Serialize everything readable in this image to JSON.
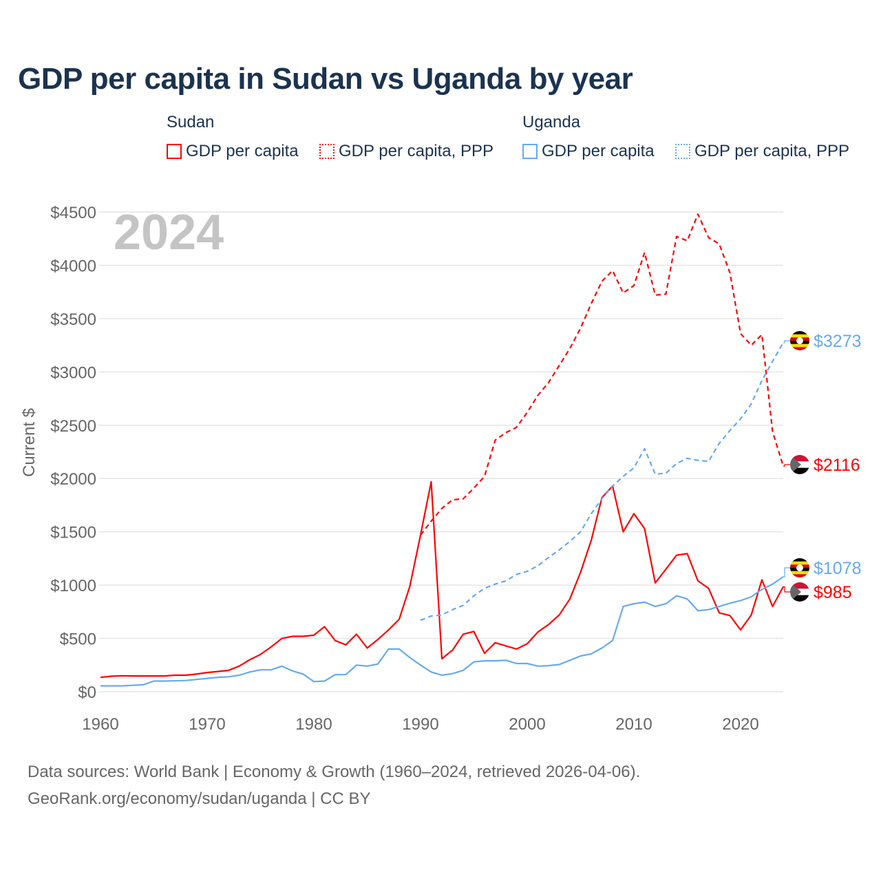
{
  "title": "GDP per capita in Sudan vs Uganda by year",
  "legend": {
    "groups": [
      {
        "name": "Sudan",
        "items": [
          "GDP per capita",
          "GDP per capita, PPP"
        ]
      },
      {
        "name": "Uganda",
        "items": [
          "GDP per capita",
          "GDP per capita, PPP"
        ]
      }
    ]
  },
  "colors": {
    "sudan": "#ff0000",
    "uganda": "#66aaee",
    "grid": "#e6e6e6",
    "year_watermark": "#c4c4c4"
  },
  "footer": {
    "line1": "Data sources: World Bank | Economy & Growth (1960–2024, retrieved 2026-04-06).",
    "line2": "GeoRank.org/economy/sudan/uganda | CC BY"
  },
  "chart_data": {
    "type": "line",
    "title": "GDP per capita in Sudan vs Uganda by year",
    "year_label": "2024",
    "xlabel": "",
    "ylabel": "Current $",
    "xlim": [
      1960,
      2024
    ],
    "ylim": [
      0,
      4500
    ],
    "x_ticks": [
      "1960",
      "1970",
      "1980",
      "1990",
      "2000",
      "2010",
      "2020"
    ],
    "y_ticks": [
      "$0",
      "$500",
      "$1000",
      "$1500",
      "$2000",
      "$2500",
      "$3000",
      "$3500",
      "$4000",
      "$4500"
    ],
    "grid": true,
    "series": [
      {
        "name": "Sudan GDP per capita",
        "country": "Sudan",
        "style": "solid",
        "start": 1960,
        "values": [
          135,
          145,
          150,
          148,
          148,
          148,
          148,
          155,
          155,
          165,
          180,
          190,
          200,
          240,
          300,
          350,
          420,
          500,
          520,
          520,
          530,
          610,
          480,
          440,
          540,
          410,
          490,
          580,
          680,
          990,
          1470,
          1970,
          310,
          390,
          540,
          565,
          360,
          460,
          430,
          400,
          450,
          560,
          630,
          720,
          870,
          1120,
          1420,
          1820,
          1930,
          1500,
          1670,
          1530,
          1020,
          1150,
          1280,
          1295,
          1040,
          970,
          740,
          715,
          580,
          720,
          1050,
          800,
          985
        ],
        "end_label": "$985"
      },
      {
        "name": "Sudan GDP per capita, PPP",
        "country": "Sudan",
        "style": "dashed",
        "start": 1990,
        "values": [
          1470,
          1600,
          1720,
          1800,
          1810,
          1910,
          2020,
          2360,
          2430,
          2480,
          2620,
          2780,
          2900,
          3060,
          3220,
          3410,
          3640,
          3850,
          3950,
          3740,
          3810,
          4120,
          3720,
          3730,
          4270,
          4230,
          4480,
          4260,
          4200,
          3930,
          3360,
          3250,
          3350,
          2440,
          2116
        ],
        "end_label": "$2116"
      },
      {
        "name": "Uganda GDP per capita",
        "country": "Uganda",
        "style": "solid",
        "start": 1960,
        "values": [
          55,
          55,
          55,
          60,
          65,
          100,
          100,
          102,
          105,
          115,
          125,
          135,
          140,
          155,
          185,
          205,
          205,
          240,
          195,
          165,
          95,
          100,
          160,
          160,
          250,
          240,
          260,
          400,
          400,
          320,
          250,
          185,
          155,
          170,
          200,
          280,
          290,
          290,
          295,
          265,
          265,
          240,
          245,
          255,
          295,
          335,
          355,
          410,
          480,
          800,
          825,
          840,
          800,
          825,
          900,
          870,
          760,
          770,
          800,
          830,
          855,
          890,
          960,
          1010,
          1078
        ],
        "end_label": "$1078"
      },
      {
        "name": "Uganda GDP per capita, PPP",
        "country": "Uganda",
        "style": "dashed",
        "start": 1990,
        "values": [
          670,
          710,
          720,
          770,
          810,
          900,
          970,
          1010,
          1040,
          1100,
          1130,
          1180,
          1260,
          1330,
          1410,
          1500,
          1670,
          1810,
          1930,
          2020,
          2100,
          2280,
          2040,
          2050,
          2140,
          2190,
          2170,
          2160,
          2330,
          2450,
          2560,
          2700,
          2920,
          3100,
          3273
        ],
        "end_label": "$3273"
      }
    ]
  }
}
